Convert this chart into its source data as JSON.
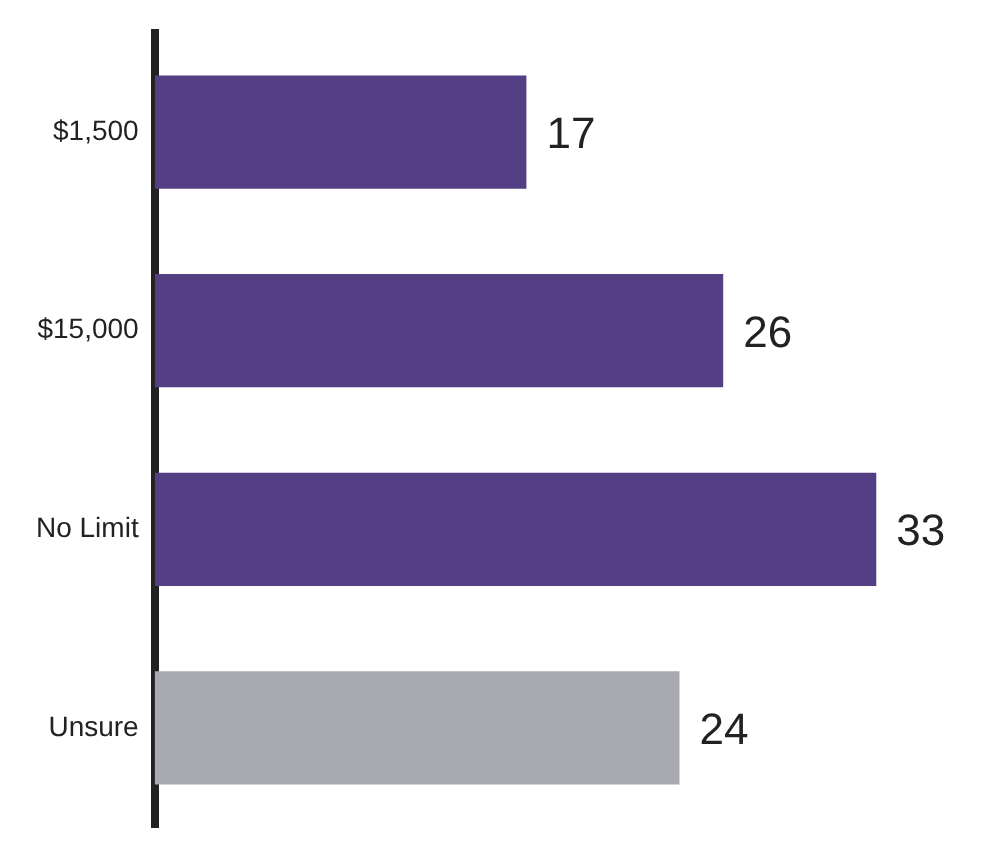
{
  "chart_data": {
    "type": "bar",
    "orientation": "horizontal",
    "categories": [
      "$1,500",
      "$15,000",
      "No Limit",
      "Unsure"
    ],
    "values": [
      17,
      26,
      33,
      24
    ],
    "colors": [
      "#553f84",
      "#553f84",
      "#553f84",
      "#a9a9b1"
    ],
    "data_labels": true,
    "legend": false,
    "tick_labels": "y"
  }
}
